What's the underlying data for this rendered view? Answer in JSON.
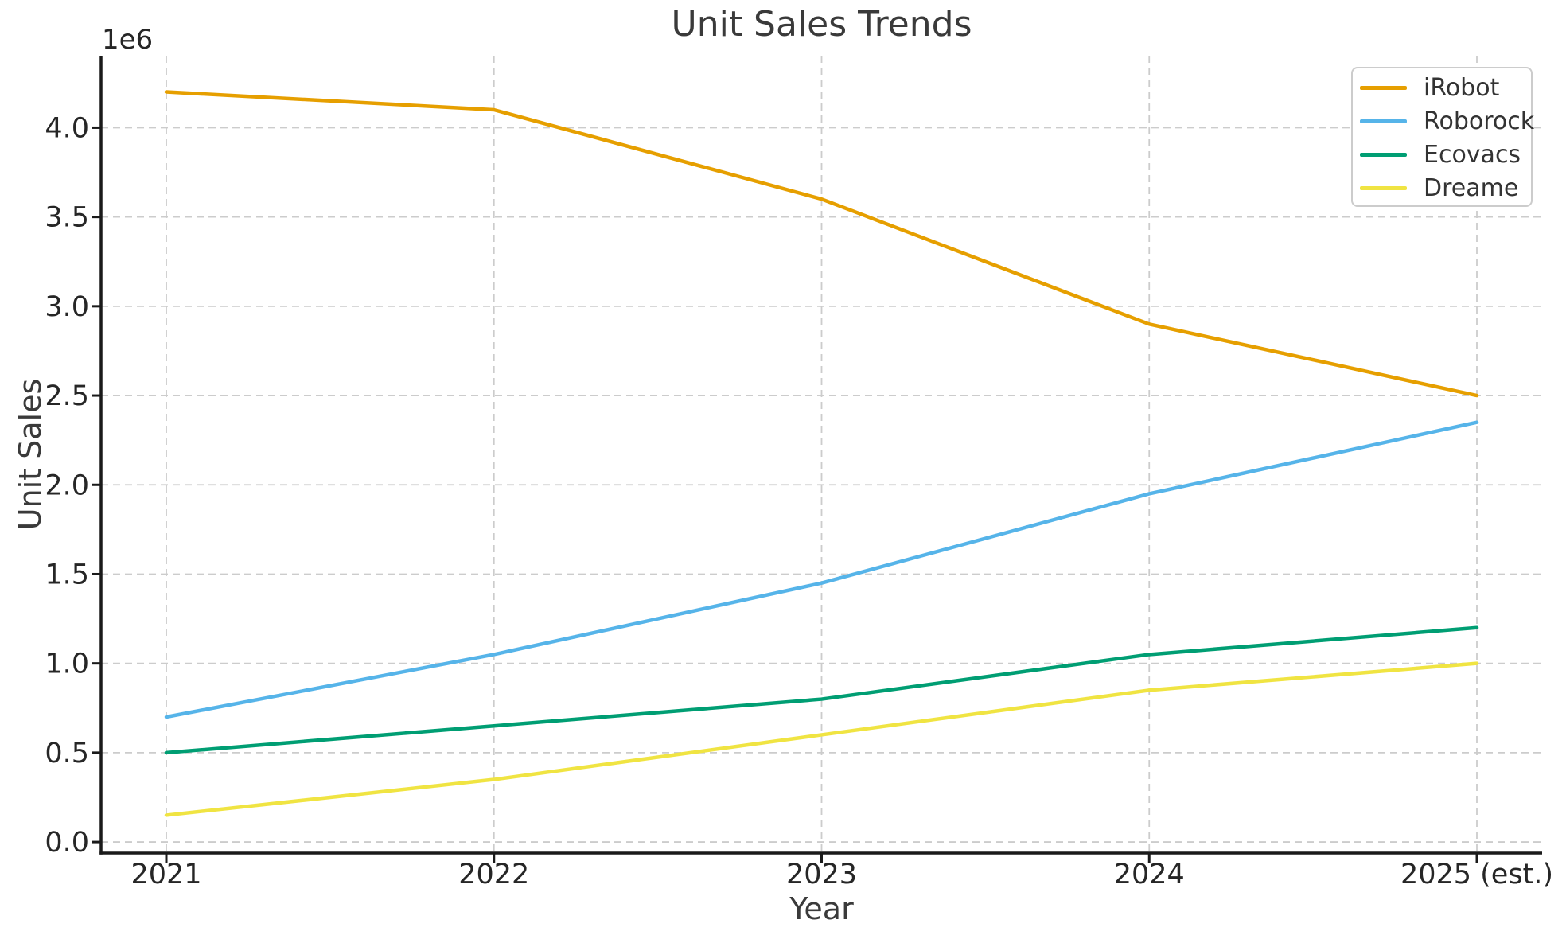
{
  "chart_data": {
    "type": "line",
    "title": "Unit Sales Trends",
    "xlabel": "Year",
    "ylabel": "Unit Sales",
    "y_offset_label": "1e6",
    "categories": [
      "2021",
      "2022",
      "2023",
      "2024",
      "2025 (est.)"
    ],
    "series": [
      {
        "name": "iRobot",
        "color": "#E69F00",
        "values": [
          4200000,
          4100000,
          3600000,
          2900000,
          2500000
        ]
      },
      {
        "name": "Roborock",
        "color": "#56B4E9",
        "values": [
          700000,
          1050000,
          1450000,
          1950000,
          2350000
        ]
      },
      {
        "name": "Ecovacs",
        "color": "#009E73",
        "values": [
          500000,
          650000,
          800000,
          1050000,
          1200000
        ]
      },
      {
        "name": "Dreame",
        "color": "#F0E442",
        "values": [
          150000,
          350000,
          600000,
          850000,
          1000000
        ]
      }
    ],
    "y_tick_values": [
      0,
      500000,
      1000000,
      1500000,
      2000000,
      2500000,
      3000000,
      3500000,
      4000000
    ],
    "y_tick_labels": [
      "0.0",
      "0.5",
      "1.0",
      "1.5",
      "2.0",
      "2.5",
      "3.0",
      "3.5",
      "4.0"
    ],
    "ylim": [
      -62000,
      4403000
    ],
    "grid": true,
    "grid_color": "#cccccc",
    "axis_color": "#1a1a1a",
    "tick_text_color": "#262626",
    "legend_position": "upper right"
  }
}
